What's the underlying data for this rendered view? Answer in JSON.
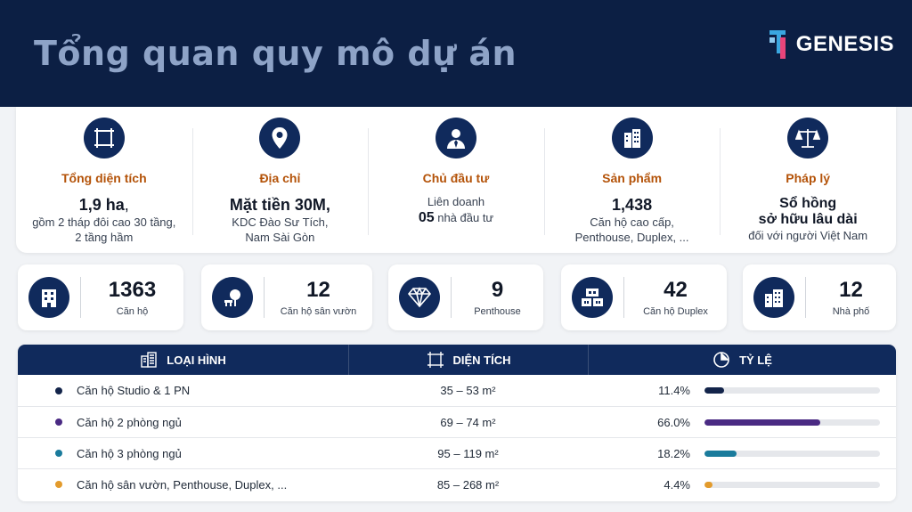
{
  "header": {
    "title": "Tổng quan quy mô dự án",
    "logo_text": "GENESIS"
  },
  "summary": {
    "area": {
      "label": "Tổng diện tích",
      "main": "1,9 ha",
      "main_suffix": ",",
      "sub1": "gồm 2 tháp đôi cao 30 tầng,",
      "sub2": "2 tầng hầm",
      "icon": "area-icon"
    },
    "address": {
      "label": "Địa chỉ",
      "main": "Mặt tiền 30M,",
      "sub1": "KDC Đào Sư Tích,",
      "sub2": "Nam Sài Gòn",
      "icon": "location-pin-icon"
    },
    "investor": {
      "label": "Chủ đầu tư",
      "line1": "Liên doanh",
      "count": "05",
      "line2_rest": " nhà đầu tư",
      "icon": "businessman-icon"
    },
    "product": {
      "label": "Sản phẩm",
      "main": "1,438",
      "sub1": "Căn hộ cao cấp,",
      "sub2": "Penthouse, Duplex, ...",
      "icon": "building-icon"
    },
    "legal": {
      "label": "Pháp lý",
      "main1": "Sổ hồng",
      "main2": "sở hữu lâu dài",
      "sub1": "đối với người Việt Nam",
      "icon": "scales-icon"
    }
  },
  "stats": [
    {
      "value": "1363",
      "caption": "Căn hộ",
      "icon": "apartment-icon"
    },
    {
      "value": "12",
      "caption": "Căn hộ sân vườn",
      "icon": "garden-tree-icon"
    },
    {
      "value": "9",
      "caption": "Penthouse",
      "icon": "diamond-icon"
    },
    {
      "value": "42",
      "caption": "Căn hộ Duplex",
      "icon": "duplex-icon"
    },
    {
      "value": "12",
      "caption": "Nhà phố",
      "icon": "townhouse-icon"
    }
  ],
  "table": {
    "headers": {
      "type": "LOẠI HÌNH",
      "area": "DIỆN TÍCH",
      "ratio": "TỶ LỆ"
    },
    "rows": [
      {
        "name": "Căn hộ Studio & 1 PN",
        "area": "35 – 53 m²",
        "ratio": "11.4%",
        "value": 11.4,
        "color": "#13244a"
      },
      {
        "name": "Căn hộ 2 phòng ngủ",
        "area": "69 – 74 m²",
        "ratio": "66.0%",
        "value": 66.0,
        "color": "#4a2a83"
      },
      {
        "name": "Căn hộ 3 phòng ngủ",
        "area": "95 – 119 m²",
        "ratio": "18.2%",
        "value": 18.2,
        "color": "#1a7b9c"
      },
      {
        "name": "Căn hộ sân vườn, Penthouse, Duplex, ...",
        "area": "85 – 268 m²",
        "ratio": "4.4%",
        "value": 4.4,
        "color": "#e39b2c"
      }
    ]
  },
  "colors": {
    "navy": "#102a5c",
    "label_orange": "#b45309",
    "title": "#8ea3c7"
  }
}
